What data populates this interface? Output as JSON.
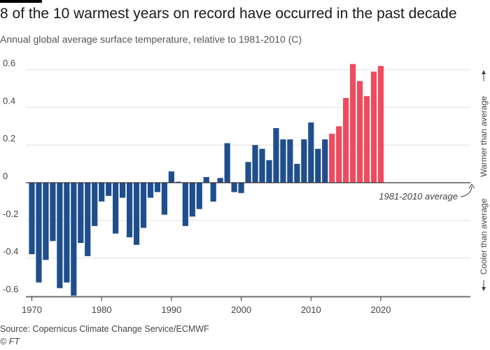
{
  "header": {
    "title": "8 of the 10 warmest years on record have occurred in the past decade",
    "subtitle": "Annual global average surface temperature, relative to 1981-2010 (C)"
  },
  "footer": {
    "source": "Source: Copernicus Climate Change Service/ECMWF",
    "copyright": "© FT"
  },
  "colors": {
    "past": "#1f4e8c",
    "recent": "#ef4b5e",
    "grid": "#e6dfda",
    "axis": "#333333"
  },
  "chart_data": {
    "type": "bar",
    "title": "8 of the 10 warmest years on record have occurred in the past decade",
    "subtitle": "Annual global average surface temperature, relative to 1981-2010 (C)",
    "xlabel": "",
    "ylabel": "",
    "ylim": [
      -0.62,
      0.65
    ],
    "yticks": [
      0.6,
      0.4,
      0.2,
      0,
      -0.2,
      -0.4,
      -0.6
    ],
    "ytick_labels": [
      "0.6",
      "0.4",
      "0.2",
      "0",
      "-0.2",
      "-0.4",
      "-0.6"
    ],
    "xticks": [
      1970,
      1980,
      1990,
      2000,
      2010,
      2020
    ],
    "grid": true,
    "highlight_from_year": 2013,
    "years": [
      1970,
      1971,
      1972,
      1973,
      1974,
      1975,
      1976,
      1977,
      1978,
      1979,
      1980,
      1981,
      1982,
      1983,
      1984,
      1985,
      1986,
      1987,
      1988,
      1989,
      1990,
      1991,
      1992,
      1993,
      1994,
      1995,
      1996,
      1997,
      1998,
      1999,
      2000,
      2001,
      2002,
      2003,
      2004,
      2005,
      2006,
      2007,
      2008,
      2009,
      2010,
      2011,
      2012,
      2013,
      2014,
      2015,
      2016,
      2017,
      2018,
      2019,
      2020
    ],
    "values": [
      -0.38,
      -0.53,
      -0.41,
      -0.31,
      -0.56,
      -0.53,
      -0.6,
      -0.32,
      -0.39,
      -0.23,
      -0.1,
      -0.07,
      -0.27,
      -0.08,
      -0.29,
      -0.33,
      -0.24,
      -0.08,
      -0.05,
      -0.17,
      0.06,
      0.005,
      -0.23,
      -0.18,
      -0.14,
      0.03,
      -0.1,
      0.025,
      0.21,
      -0.05,
      -0.055,
      0.11,
      0.2,
      0.18,
      0.12,
      0.29,
      0.23,
      0.23,
      0.1,
      0.23,
      0.32,
      0.18,
      0.23,
      0.26,
      0.3,
      0.45,
      0.63,
      0.54,
      0.46,
      0.59,
      0.62
    ],
    "annotations": {
      "baseline": "1981-2010 average",
      "warmer": "Warmer than average",
      "cooler": "Cooler than average"
    }
  }
}
